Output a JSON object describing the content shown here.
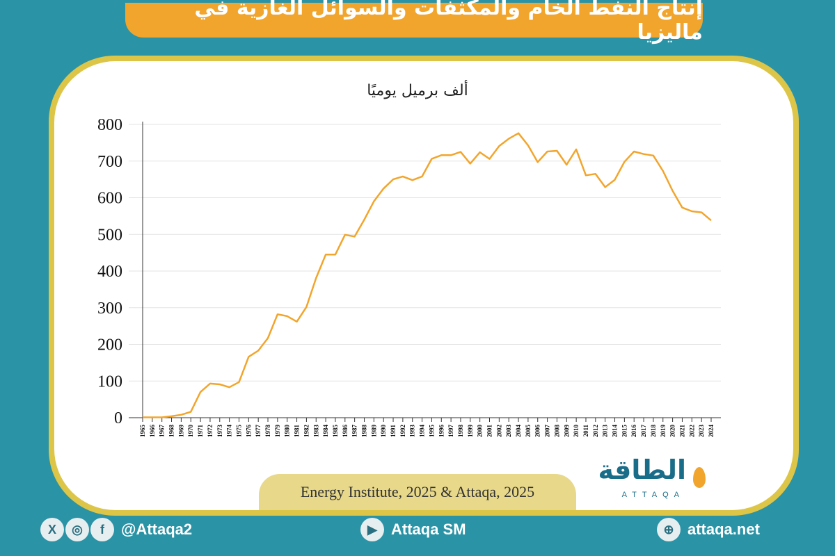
{
  "header": {
    "title": "إنتاج النفط الخام والمكثفات والسوائل الغازية في ماليزيا"
  },
  "chart_data": {
    "type": "line",
    "title": "",
    "unit_label": "ألف برميل يوميًا",
    "xlabel": "",
    "ylabel": "",
    "ylim": [
      0,
      800
    ],
    "y_ticks": [
      0,
      100,
      200,
      300,
      400,
      500,
      600,
      700,
      800
    ],
    "x": [
      1965,
      1966,
      1967,
      1968,
      1969,
      1970,
      1971,
      1972,
      1973,
      1974,
      1975,
      1976,
      1977,
      1978,
      1979,
      1980,
      1981,
      1982,
      1983,
      1984,
      1985,
      1986,
      1987,
      1988,
      1989,
      1990,
      1991,
      1992,
      1993,
      1994,
      1995,
      1996,
      1997,
      1998,
      1999,
      2000,
      2001,
      2002,
      2003,
      2004,
      2005,
      2006,
      2007,
      2008,
      2009,
      2010,
      2011,
      2012,
      2013,
      2014,
      2015,
      2016,
      2017,
      2018,
      2019,
      2020,
      2021,
      2022,
      2023,
      2024
    ],
    "series": [
      {
        "values": [
          1,
          1,
          1,
          4,
          8,
          16,
          70,
          93,
          91,
          83,
          97,
          166,
          183,
          217,
          282,
          277,
          262,
          302,
          381,
          445,
          445,
          499,
          494,
          540,
          590,
          625,
          650,
          658,
          648,
          658,
          706,
          716,
          716,
          725,
          693,
          724,
          706,
          741,
          761,
          776,
          743,
          697,
          726,
          728,
          690,
          732,
          661,
          665,
          629,
          649,
          698,
          726,
          719,
          715,
          673,
          619,
          573,
          563,
          560,
          538
        ]
      }
    ],
    "colors": {
      "line": "#f2a52c"
    },
    "grid": "horizontal"
  },
  "source": "Energy Institute, 2025 & Attaqa, 2025",
  "logo": {
    "ar": "الطاقة",
    "en": "ATTAQA"
  },
  "footer": {
    "social_handle": "@Attaqa2",
    "youtube": "Attaqa SM",
    "website": "attaqa.net"
  }
}
